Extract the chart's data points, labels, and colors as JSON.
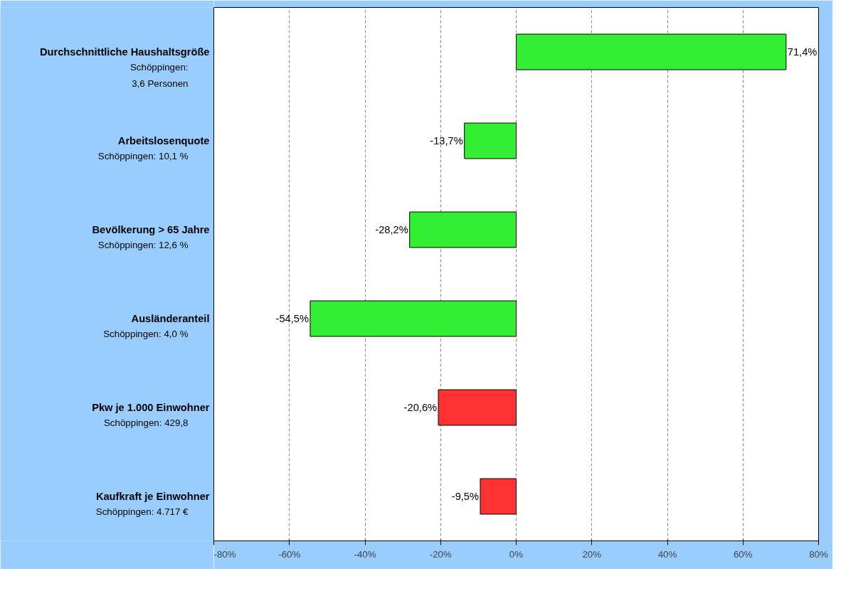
{
  "chart_data": {
    "type": "bar",
    "orientation": "horizontal",
    "categories": [
      "Durchschnittliche Haushaltsgröße\nSchöppingen:\n3,6 Personen",
      "Arbeitslosenquote\nSchöppingen: 10,1 %",
      "Bevölkerung > 65 Jahre\nSchöppingen: 12,6 %",
      "Ausländeranteil\nSchöppingen: 4,0 %",
      "Pkw je 1.000 Einwohner\nSchöppingen: 429,8",
      "Kaufkraft je Einwohner\nSchöppingen: 4.717 €"
    ],
    "values": [
      71.4,
      -13.7,
      -28.2,
      -54.5,
      -20.6,
      -9.5
    ],
    "value_labels": [
      "71,4%",
      "-13,7%",
      "-28,2%",
      "-54,5%",
      "-20,6%",
      "-9,5%"
    ],
    "colors": [
      "#33ee33",
      "#33ee33",
      "#33ee33",
      "#33ee33",
      "#ff3333",
      "#ff3333"
    ],
    "xlim": [
      -80,
      80
    ],
    "xticks": [
      {
        "value": -80,
        "label": "-80%"
      },
      {
        "value": -60,
        "label": "-60%"
      },
      {
        "value": -40,
        "label": "-40%"
      },
      {
        "value": -20,
        "label": "-20%"
      },
      {
        "value": 0,
        "label": "0%"
      },
      {
        "value": 20,
        "label": "20%"
      },
      {
        "value": 40,
        "label": "40%"
      },
      {
        "value": 60,
        "label": "60%"
      },
      {
        "value": 80,
        "label": "80%"
      }
    ],
    "grid": "x"
  }
}
